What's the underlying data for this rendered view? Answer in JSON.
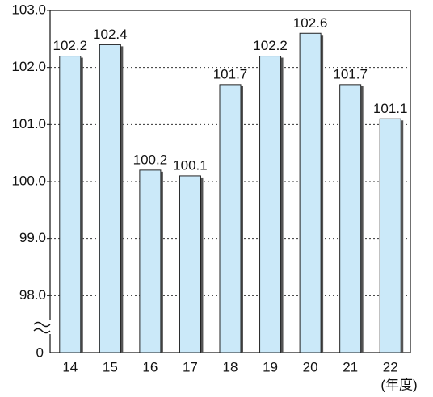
{
  "chart_data": {
    "type": "bar",
    "categories": [
      "14",
      "15",
      "16",
      "17",
      "18",
      "19",
      "20",
      "21",
      "22"
    ],
    "values": [
      102.2,
      102.4,
      100.2,
      100.1,
      101.7,
      102.2,
      102.6,
      101.7,
      101.1
    ],
    "color": "#cbe9f9",
    "ylim": [
      97,
      103
    ],
    "yticks": [
      {
        "value": 98,
        "label": "98.0"
      },
      {
        "value": 99,
        "label": "99.0"
      },
      {
        "value": 100,
        "label": "100.0"
      },
      {
        "value": 101,
        "label": "101.0"
      },
      {
        "value": 102,
        "label": "102.0"
      },
      {
        "value": 103,
        "label": "103.0"
      }
    ],
    "axis_break_label": "0",
    "x_label": "(年度)",
    "grid": true
  }
}
